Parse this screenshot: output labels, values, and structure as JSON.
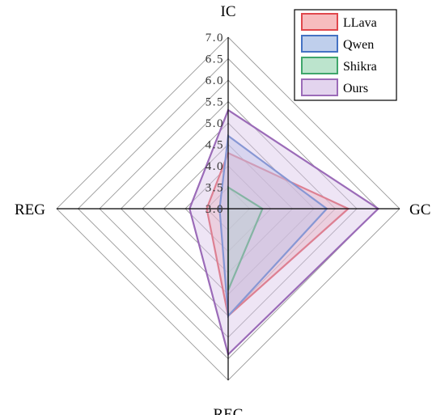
{
  "chart_data": {
    "type": "radar",
    "axes": [
      "IC",
      "GC",
      "REC",
      "REG"
    ],
    "rlim": [
      3.0,
      7.0
    ],
    "ticks": [
      "3.0",
      "3.5",
      "4.0",
      "4.5",
      "5.0",
      "5.5",
      "6.0",
      "6.5",
      "7.0"
    ],
    "grid": true,
    "legend_position": "top-right",
    "series": [
      {
        "name": "LLava",
        "values": [
          4.3,
          5.8,
          5.5,
          3.5
        ],
        "color": "#e0474c",
        "fill": "#f4a6a8"
      },
      {
        "name": "Qwen",
        "values": [
          4.7,
          5.3,
          5.5,
          3.2
        ],
        "color": "#4472c4",
        "fill": "#a9bfe6"
      },
      {
        "name": "Shikra",
        "values": [
          3.5,
          3.8,
          4.9,
          3.0
        ],
        "color": "#3fa66b",
        "fill": "#a6dbbc"
      },
      {
        "name": "Ours",
        "values": [
          5.3,
          6.5,
          6.4,
          3.9
        ],
        "color": "#9b6bb8",
        "fill": "#d9c6e8"
      }
    ]
  }
}
